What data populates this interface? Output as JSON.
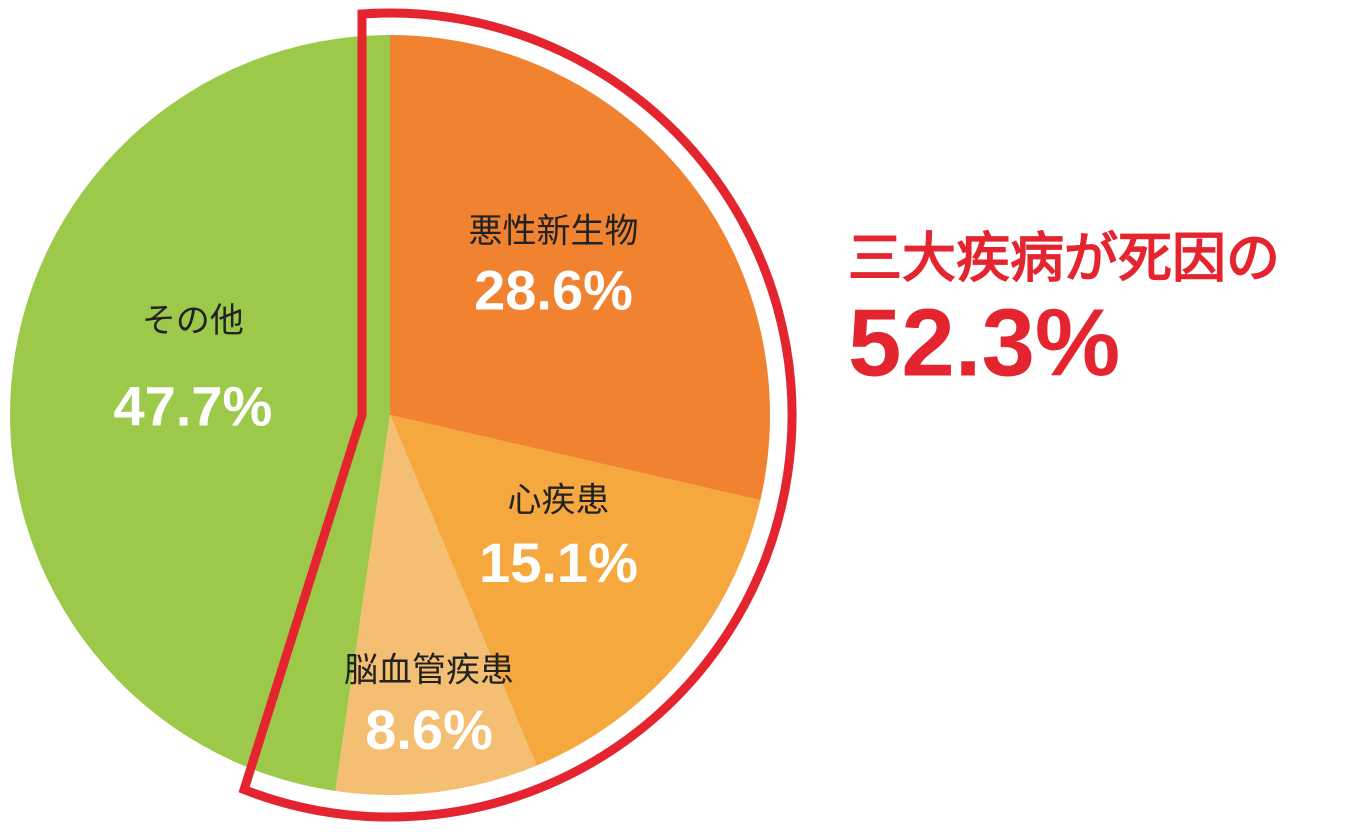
{
  "chart_data": {
    "type": "pie",
    "categories": [
      "悪性新生物",
      "心疾患",
      "脳血管疾患",
      "その他"
    ],
    "values": [
      28.6,
      15.1,
      8.6,
      47.7
    ],
    "value_labels": [
      "28.6%",
      "15.1%",
      "8.6%",
      "47.7%"
    ],
    "colors": [
      "#f08230",
      "#f5a83d",
      "#f4bf73",
      "#9dc94a"
    ],
    "highlight": {
      "title": "三大疾病が死因の",
      "value": 52.3,
      "label": "52.3%",
      "color": "#e4252f"
    }
  }
}
